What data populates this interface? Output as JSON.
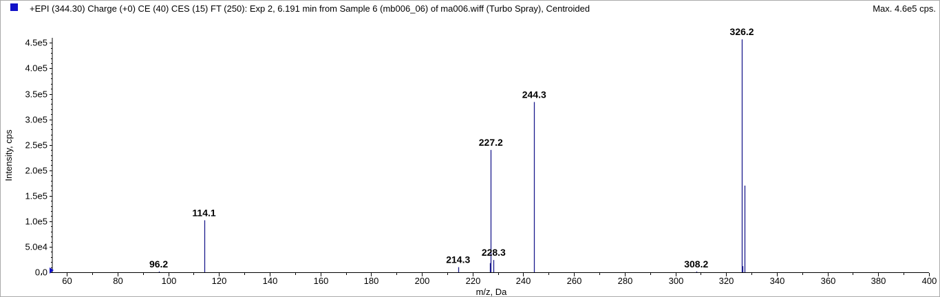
{
  "header": {
    "title": "+EPI (344.30) Charge (+0) CE (40) CES (15) FT (250): Exp 2, 6.191 min from Sample 6 (mb006_06) of ma006.wiff (Turbo Spray), Centroided",
    "max_label": "Max. 4.6e5 cps."
  },
  "colors": {
    "series": "#1a1a8c",
    "swatch": "#1212c8",
    "axis": "#000000"
  },
  "chart_data": {
    "type": "bar",
    "title": "+EPI (344.30) Charge (+0) CE (40) CES (15) FT (250): Exp 2, 6.191 min from Sample 6 (mb006_06) of ma006.wiff (Turbo Spray), Centroided",
    "xlabel": "m/z, Da",
    "ylabel": "Intensity, cps",
    "xlim": [
      48,
      400
    ],
    "ylim": [
      0,
      460000
    ],
    "grid": false,
    "x_ticks": [
      60,
      80,
      100,
      120,
      140,
      160,
      180,
      200,
      220,
      240,
      260,
      280,
      300,
      320,
      340,
      360,
      380,
      400
    ],
    "x_tick_labels": [
      "60",
      "80",
      "100",
      "120",
      "140",
      "160",
      "180",
      "200",
      "220",
      "240",
      "260",
      "280",
      "300",
      "320",
      "340",
      "360",
      "380",
      "400"
    ],
    "y_ticks": [
      0,
      50000,
      100000,
      150000,
      200000,
      250000,
      300000,
      350000,
      400000,
      450000
    ],
    "y_tick_labels": [
      "0.0",
      "5.0e4",
      "1.0e5",
      "1.5e5",
      "2.0e5",
      "2.5e5",
      "3.0e5",
      "3.5e5",
      "4.0e5",
      "4.5e5"
    ],
    "peaks": [
      {
        "mz": 96.2,
        "intensity": 1500
      },
      {
        "mz": 114.1,
        "intensity": 102000
      },
      {
        "mz": 214.3,
        "intensity": 10000
      },
      {
        "mz": 226.9,
        "intensity": 18000
      },
      {
        "mz": 227.2,
        "intensity": 240000
      },
      {
        "mz": 228.3,
        "intensity": 24000
      },
      {
        "mz": 244.3,
        "intensity": 334000
      },
      {
        "mz": 308.2,
        "intensity": 1500
      },
      {
        "mz": 326.2,
        "intensity": 457000
      },
      {
        "mz": 326.5,
        "intensity": 12000
      },
      {
        "mz": 327.2,
        "intensity": 170000
      }
    ],
    "peak_labels": [
      {
        "text": "96.2",
        "mz": 96.2,
        "intensity": 1500
      },
      {
        "text": "114.1",
        "mz": 114.1,
        "intensity": 102000
      },
      {
        "text": "214.3",
        "mz": 214.3,
        "intensity": 10000
      },
      {
        "text": "227.2",
        "mz": 227.2,
        "intensity": 240000
      },
      {
        "text": "228.3",
        "mz": 228.3,
        "intensity": 24000
      },
      {
        "text": "244.3",
        "mz": 244.3,
        "intensity": 334000
      },
      {
        "text": "308.2",
        "mz": 308.2,
        "intensity": 1500
      },
      {
        "text": "326.2",
        "mz": 326.2,
        "intensity": 457000
      }
    ]
  }
}
